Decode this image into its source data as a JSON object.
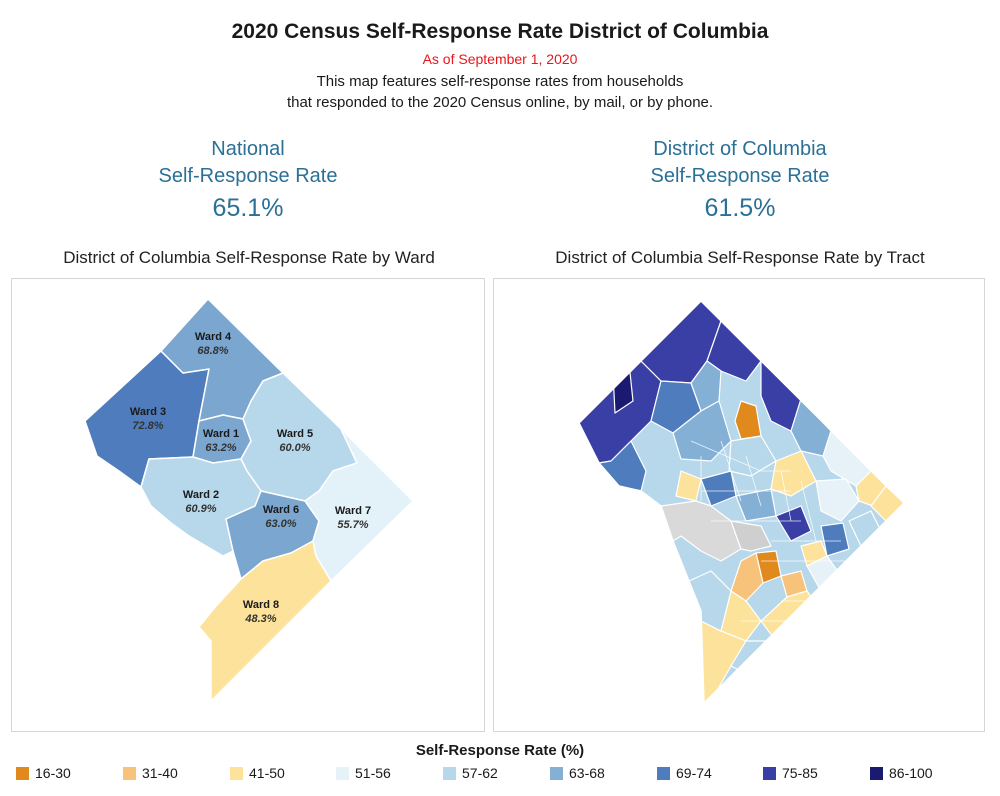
{
  "header": {
    "title": "2020 Census Self-Response Rate District of Columbia",
    "as_of": "As of September 1, 2020",
    "description_line1": "This map features self-response rates from households",
    "description_line2": "that responded to the 2020 Census online, by mail, or by phone."
  },
  "kpis": {
    "national": {
      "line1": "National",
      "line2": "Self-Response Rate",
      "value": "65.1%"
    },
    "dc": {
      "line1": "District of Columbia",
      "line2": "Self-Response Rate",
      "value": "61.5%"
    }
  },
  "ward_map": {
    "title": "District of Columbia Self-Response Rate by Ward",
    "wards": [
      {
        "name": "Ward 4",
        "rate": "68.8%",
        "color": "#7aa6cf"
      },
      {
        "name": "Ward 3",
        "rate": "72.8%",
        "color": "#4f7cbc"
      },
      {
        "name": "Ward 1",
        "rate": "63.2%",
        "color": "#7aa6cf"
      },
      {
        "name": "Ward 5",
        "rate": "60.0%",
        "color": "#b7d7ea"
      },
      {
        "name": "Ward 2",
        "rate": "60.9%",
        "color": "#b7d7ea"
      },
      {
        "name": "Ward 6",
        "rate": "63.0%",
        "color": "#7aa6cf"
      },
      {
        "name": "Ward 7",
        "rate": "55.7%",
        "color": "#e3f1f8"
      },
      {
        "name": "Ward 8",
        "rate": "48.3%",
        "color": "#fce29b"
      }
    ]
  },
  "tract_map": {
    "title": "District of Columbia Self-Response Rate by Tract"
  },
  "legend": {
    "title": "Self-Response Rate (%)",
    "items": [
      {
        "label": "16-30",
        "color": "#e08a1e"
      },
      {
        "label": "31-40",
        "color": "#f7c27a"
      },
      {
        "label": "41-50",
        "color": "#fde29b"
      },
      {
        "label": "51-56",
        "color": "#e6f2f8"
      },
      {
        "label": "57-62",
        "color": "#b7d7ea"
      },
      {
        "label": "63-68",
        "color": "#84b0d6"
      },
      {
        "label": "69-74",
        "color": "#4f7cbc"
      },
      {
        "label": "75-85",
        "color": "#3a3fa6"
      },
      {
        "label": "86-100",
        "color": "#1a1a70"
      }
    ]
  }
}
